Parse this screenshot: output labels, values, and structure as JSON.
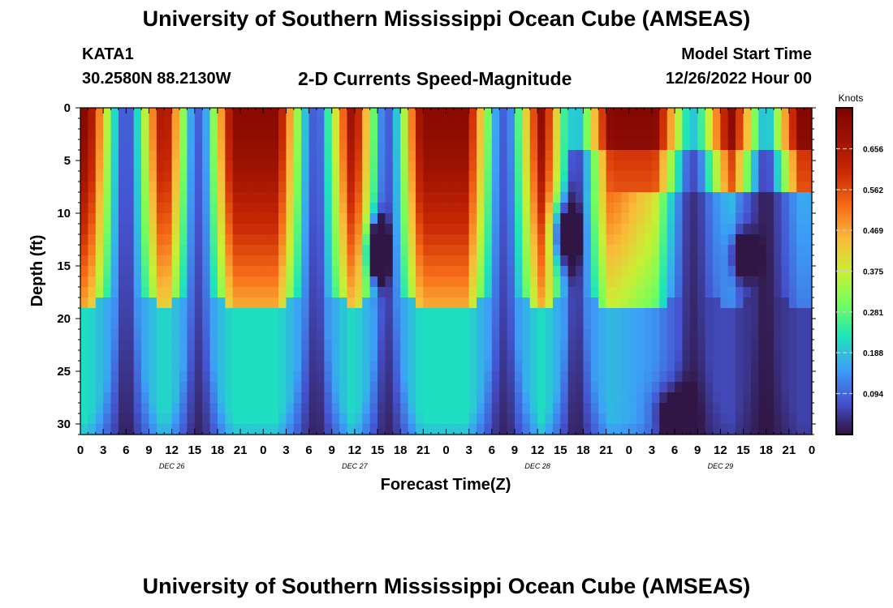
{
  "header": {
    "title": "University of Southern Mississippi Ocean Cube (AMSEAS)",
    "station": "KATA1",
    "coords": "30.2580N  88.2130W",
    "subtitle": "2-D Currents Speed-Magnitude",
    "model_start_label": "Model Start Time",
    "model_start_value": "12/26/2022 Hour 00",
    "footer_title": "University of Southern Mississippi Ocean Cube (AMSEAS)"
  },
  "chart_data": {
    "type": "heatmap",
    "xlabel": "Forecast Time(Z)",
    "ylabel": "Depth (ft)",
    "x_range_hours": [
      0,
      96
    ],
    "y_range": [
      0,
      31
    ],
    "x_tick_labels": [
      "0",
      "3",
      "6",
      "9",
      "12",
      "15",
      "18",
      "21",
      "0",
      "3",
      "6",
      "9",
      "12",
      "15",
      "18",
      "21",
      "0",
      "3",
      "6",
      "9",
      "12",
      "15",
      "18",
      "21",
      "0",
      "3",
      "6",
      "9",
      "12",
      "15",
      "18",
      "21",
      "0"
    ],
    "day_labels": [
      "DEC 26",
      "DEC 27",
      "DEC 28",
      "DEC 29"
    ],
    "y_ticks": [
      0,
      5,
      10,
      15,
      20,
      25,
      30
    ],
    "colorbar": {
      "title": "Knots",
      "range": [
        0,
        0.75
      ],
      "ticks": [
        "0.656",
        "0.562",
        "0.469",
        "0.375",
        "0.281",
        "0.188",
        "0.094"
      ],
      "tick_values": [
        0.656,
        0.562,
        0.469,
        0.375,
        0.281,
        0.188,
        0.094
      ]
    }
  }
}
